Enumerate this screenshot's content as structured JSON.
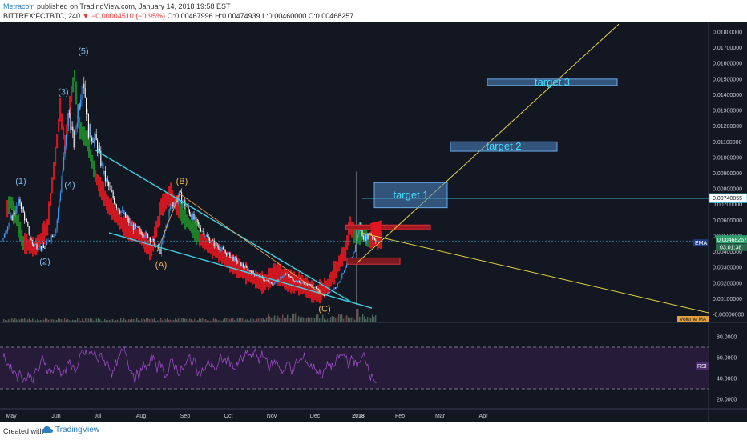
{
  "header": {
    "author": "Metracoin",
    "published": "published on TradingView.com, January 14, 2018 19:58 EST",
    "symbol": "BITTREX:FCTBTC, 240",
    "change_arrow": "▼",
    "change": "−0.00004510 (−0.95%)",
    "ohlc": "O:0.00467996 H:0.00474939 L:0.00460000 C:0.00468257"
  },
  "footer": {
    "created": "Created with",
    "brand": "TradingView"
  },
  "chart_data": {
    "type": "candlestick",
    "price_axis_labels": [
      "0.01800000",
      "0.01700000",
      "0.01600000",
      "0.01500000",
      "0.01400000",
      "0.01300000",
      "0.01200000",
      "0.01100000",
      "0.01000000",
      "0.00900000",
      "0.00800000",
      "0.00700000",
      "0.00600000",
      "0.00500000",
      "0.00400000",
      "0.00300000",
      "0.00200000",
      "0.00100000",
      "-0.00000000"
    ],
    "price_axis_values": [
      0.018,
      0.017,
      0.016,
      0.015,
      0.014,
      0.013,
      0.012,
      0.011,
      0.01,
      0.009,
      0.008,
      0.007,
      0.006,
      0.005,
      0.004,
      0.003,
      0.002,
      0.001,
      0
    ],
    "time_axis_labels": [
      "May",
      "Jun",
      "Jul",
      "Aug",
      "Sep",
      "Oct",
      "Nov",
      "Dec",
      "2018",
      "Feb",
      "Mar",
      "Apr"
    ],
    "current_price_label": "0.00468257",
    "countdown_label": "03:01:38",
    "ema_label": "EMA",
    "target_line_label": "0.00740855",
    "target_line_value": 0.00740855,
    "volume_ma_label": "Volume MA",
    "rsi_label": "RSI",
    "rsi_axis_labels": [
      "80.0000",
      "60.0000",
      "40.0000",
      "20.0000"
    ],
    "rsi_axis_values": [
      80,
      60,
      40,
      20
    ],
    "rsi_bands": [
      70,
      30
    ],
    "targets": [
      {
        "label": "target 1",
        "price_low": 0.0068,
        "price_high": 0.0084
      },
      {
        "label": "target 2",
        "price_low": 0.0104,
        "price_high": 0.011
      },
      {
        "label": "target 3",
        "price_low": 0.0148,
        "price_high": 0.015
      }
    ],
    "wave_labels": [
      {
        "text": "(1)",
        "color": "#7fb8e6",
        "price": 0.0078
      },
      {
        "text": "(2)",
        "color": "#7fb8e6",
        "price": 0.0038
      },
      {
        "text": "(3)",
        "color": "#7fb8e6",
        "price": 0.0136
      },
      {
        "text": "(4)",
        "color": "#7fb8e6",
        "price": 0.0086
      },
      {
        "text": "(5)",
        "color": "#7fb8e6",
        "price": 0.0162
      },
      {
        "text": "(A)",
        "color": "#f0b35a",
        "price": 0.0036
      },
      {
        "text": "(B)",
        "color": "#f0b35a",
        "price": 0.0081
      },
      {
        "text": "(C)",
        "color": "#f0b35a",
        "price": 0.0007
      }
    ],
    "colors": {
      "background": "#131722",
      "up": "#3d9aff",
      "down": "#ffffff",
      "cloud_red": "#e0171f",
      "cloud_green": "#1f8a2a",
      "channel": "#38d2e6",
      "projection": "#e3d23a",
      "rsi": "#a64fd1",
      "target_box": "#4f88c6",
      "target_text": "#3fe1ff"
    }
  }
}
